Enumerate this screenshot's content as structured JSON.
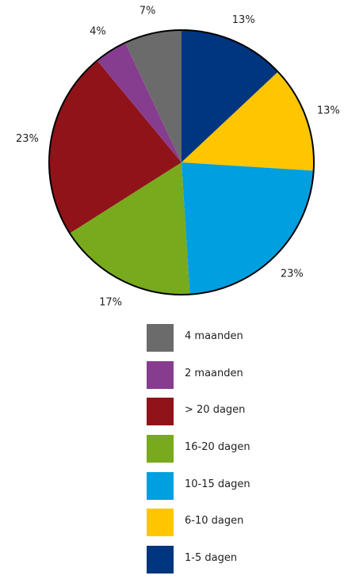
{
  "chart_data": {
    "type": "pie",
    "slices": [
      {
        "label": "1-5 dagen",
        "value": 13,
        "text": "13%",
        "color": "#003580"
      },
      {
        "label": "6-10 dagen",
        "value": 13,
        "text": "13%",
        "color": "#FFC600"
      },
      {
        "label": "10-15 dagen",
        "value": 23,
        "text": "23%",
        "color": "#009FDF"
      },
      {
        "label": "16-20 dagen",
        "value": 17,
        "text": "17%",
        "color": "#78AA1E"
      },
      {
        "label": "> 20 dagen",
        "value": 23,
        "text": "23%",
        "color": "#8F1318"
      },
      {
        "label": "2 maanden",
        "value": 4,
        "text": "4%",
        "color": "#873D8F"
      },
      {
        "label": "4 maanden",
        "value": 7,
        "text": "7%",
        "color": "#6B6B6B"
      }
    ],
    "legend": {
      "placement": "bottom",
      "items": [
        {
          "label": "4 maanden",
          "color": "#6B6B6B"
        },
        {
          "label": "2 maanden",
          "color": "#873D8F"
        },
        {
          "label": "> 20 dagen",
          "color": "#8F1318"
        },
        {
          "label": "16-20 dagen",
          "color": "#78AA1E"
        },
        {
          "label": "10-15 dagen",
          "color": "#009FDF"
        },
        {
          "label": "6-10 dagen",
          "color": "#FFC600"
        },
        {
          "label": "1-5 dagen",
          "color": "#003580"
        }
      ]
    }
  }
}
